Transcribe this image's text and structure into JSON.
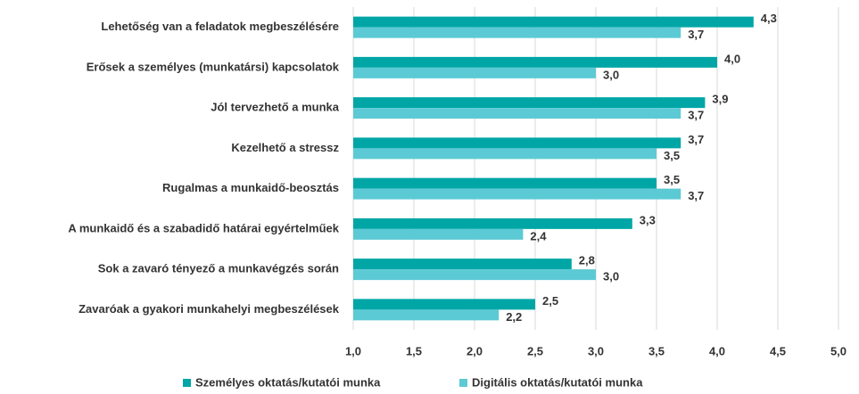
{
  "chart_data": {
    "type": "hbar",
    "categories": [
      "Lehetőség van a feladatok megbeszélésére",
      "Erősek a személyes (munkatársi) kapcsolatok",
      "Jól tervezhető a munka",
      "Kezelhető a stressz",
      "Rugalmas a munkaidő-beosztás",
      "A munkaidő és a szabadidő határai egyértelműek",
      "Sok a zavaró tényező a munkavégzés során",
      "Zavaróak a gyakori munkahelyi megbeszélések"
    ],
    "series": [
      {
        "name": "Személyes oktatás/kutatói munka",
        "color": "#00a6a6",
        "values": [
          4.3,
          4.0,
          3.9,
          3.7,
          3.5,
          3.3,
          2.8,
          2.5
        ],
        "value_labels": [
          "4,3",
          "4,0",
          "3,9",
          "3,7",
          "3,5",
          "3,3",
          "2,8",
          "2,5"
        ]
      },
      {
        "name": "Digitális oktatás/kutatói munka",
        "color": "#5ccad4",
        "values": [
          3.7,
          3.0,
          3.7,
          3.5,
          3.7,
          2.4,
          3.0,
          2.2
        ],
        "value_labels": [
          "3,7",
          "3,0",
          "3,7",
          "3,5",
          "3,7",
          "2,4",
          "3,0",
          "2,2"
        ]
      }
    ],
    "xlim": [
      1.0,
      5.0
    ],
    "xticks": [
      {
        "value": 1.0,
        "label": "1,0"
      },
      {
        "value": 1.5,
        "label": "1,5"
      },
      {
        "value": 2.0,
        "label": "2,0"
      },
      {
        "value": 2.5,
        "label": "2,5"
      },
      {
        "value": 3.0,
        "label": "3,0"
      },
      {
        "value": 3.5,
        "label": "3,5"
      },
      {
        "value": 4.0,
        "label": "4,0"
      },
      {
        "value": 4.5,
        "label": "4,5"
      },
      {
        "value": 5.0,
        "label": "5,0"
      }
    ],
    "grid": true,
    "legend": "bottom"
  }
}
